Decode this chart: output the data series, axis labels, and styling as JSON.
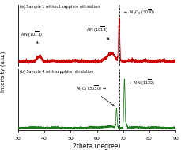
{
  "title_a": "(a) Sample 1 without sapphire nitridation",
  "title_b": "(b) Sample 4 with sapphire nitridation",
  "xlabel": "2theta (degree)",
  "ylabel": "Intensity (a.u.)",
  "xlim": [
    30,
    90
  ],
  "dashed_line_x": 68.5,
  "color_a": "#cc0000",
  "color_b": "#1a7a1a",
  "noise_seed_a": 42,
  "noise_seed_b": 7
}
